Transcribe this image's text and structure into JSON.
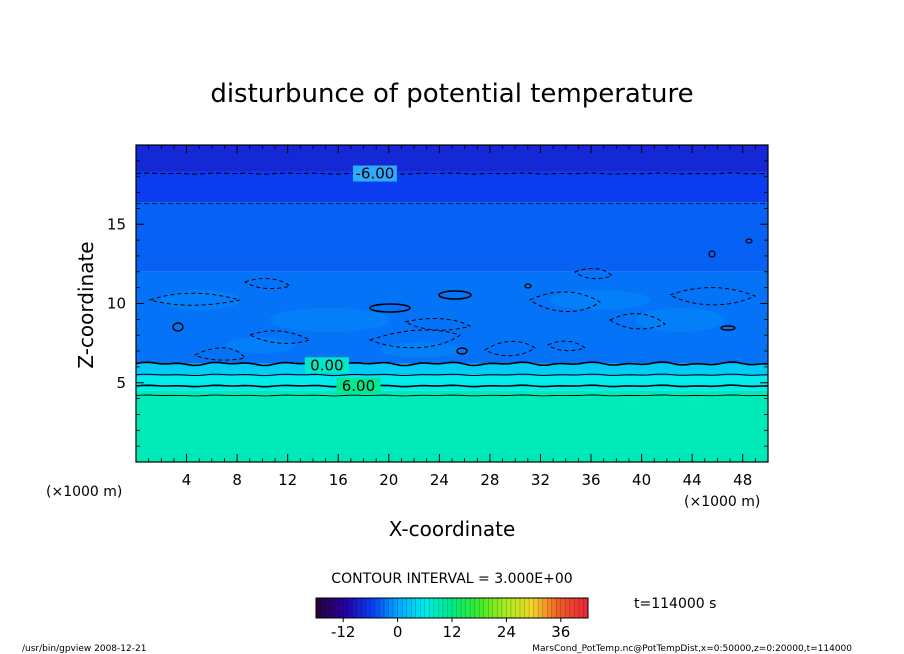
{
  "chart_data": {
    "type": "heatmap",
    "title": "disturbunce of potential temperature",
    "xlabel": "X-coordinate",
    "ylabel": "Z-coordinate",
    "x_unit_left": "(×1000 m)",
    "x_unit_right": "(×1000 m)",
    "xlim": [
      0,
      50
    ],
    "ylim": [
      0,
      20
    ],
    "x_ticks": [
      4,
      8,
      12,
      16,
      20,
      24,
      28,
      32,
      36,
      40,
      44,
      48
    ],
    "y_ticks": [
      5,
      10,
      15
    ],
    "contour_interval": "CONTOUR INTERVAL = 3.000E+00",
    "contour_labels": [
      {
        "text": "-6.00",
        "x": 18.9,
        "z": 18.2
      },
      {
        "text": "0.00",
        "x": 15.1,
        "z": 6.1
      },
      {
        "text": "6.00",
        "x": 17.6,
        "z": 4.8
      }
    ],
    "layers": [
      {
        "z_from": 0,
        "z_to": 4.5,
        "value": 9
      },
      {
        "z_from": 4.5,
        "z_to": 5.4,
        "value": 6
      },
      {
        "z_from": 5.4,
        "z_to": 6.2,
        "value": 3
      },
      {
        "z_from": 6.2,
        "z_to": 12,
        "value": -3
      },
      {
        "z_from": 12,
        "z_to": 16.4,
        "value": -4
      },
      {
        "z_from": 16.4,
        "z_to": 18.3,
        "value": -6
      },
      {
        "z_from": 18.3,
        "z_to": 20,
        "value": -8
      }
    ],
    "colorbar": {
      "ticks": [
        "-12",
        "0",
        "12",
        "24",
        "36"
      ],
      "tick_values": [
        -12,
        0,
        12,
        24,
        36
      ],
      "range": [
        -18,
        42
      ]
    },
    "time": "t=114000 s"
  },
  "footer": {
    "left": "/usr/bin/gpview   2008-12-21",
    "right": "MarsCond_PotTemp.nc@PotTempDist,x=0:50000,z=0:20000,t=114000"
  }
}
